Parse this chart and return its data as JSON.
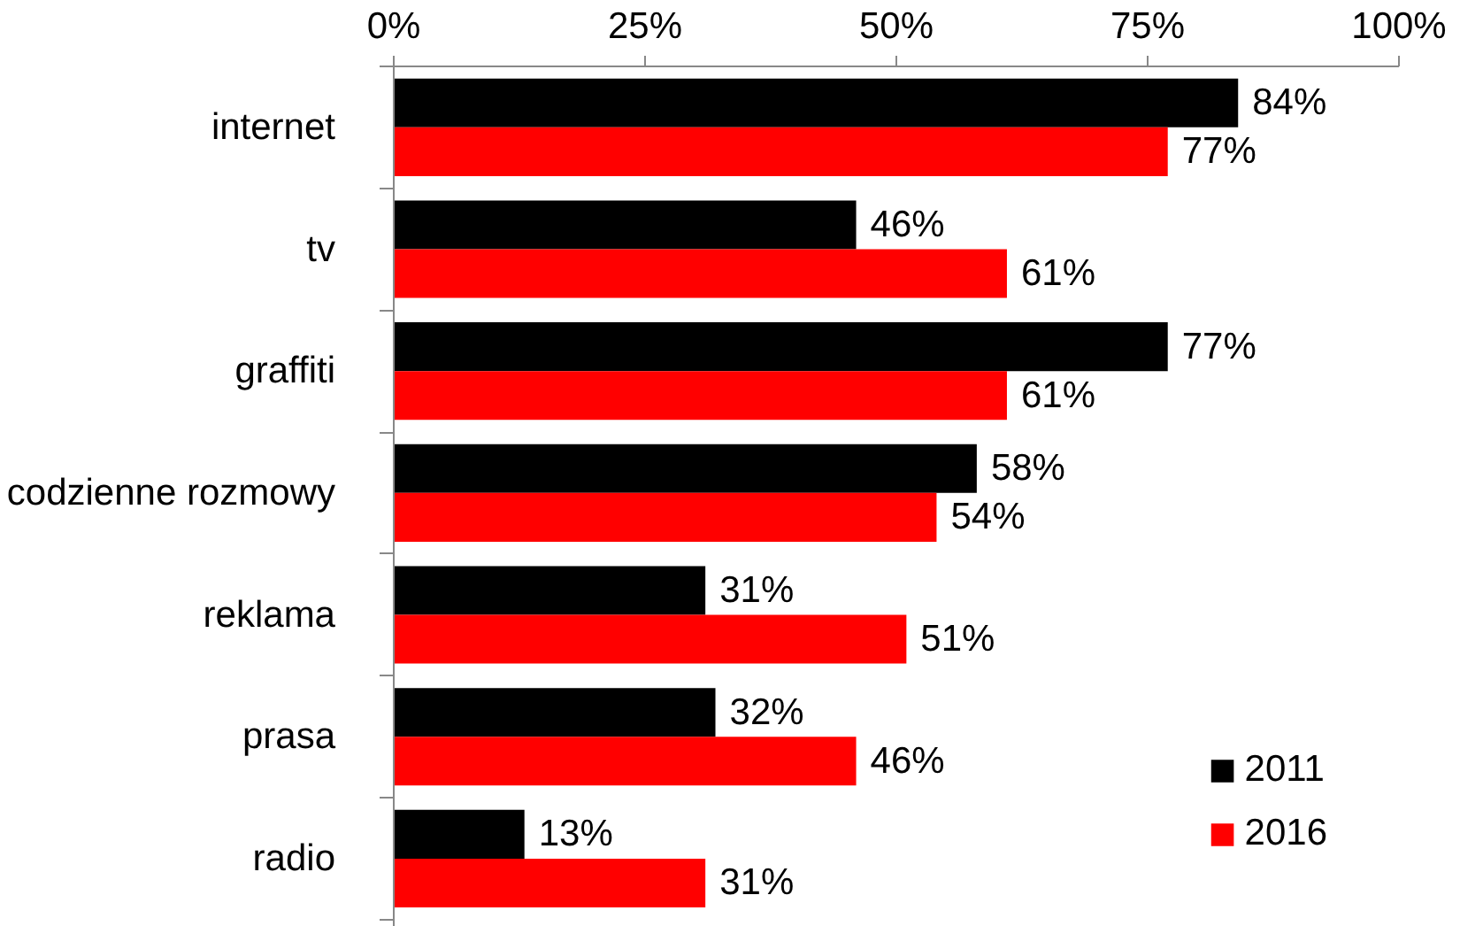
{
  "chart_data": {
    "type": "bar",
    "orientation": "horizontal",
    "categories": [
      "internet",
      "tv",
      "graffiti",
      "codzienne rozmowy",
      "reklama",
      "prasa",
      "radio"
    ],
    "series": [
      {
        "name": "2011",
        "color": "#000000",
        "values": [
          84,
          46,
          77,
          58,
          31,
          32,
          13
        ],
        "value_labels": [
          "84%",
          "46%",
          "77%",
          "58%",
          "31%",
          "32%",
          "13%"
        ]
      },
      {
        "name": "2016",
        "color": "#ff0000",
        "values": [
          77,
          61,
          61,
          54,
          51,
          46,
          31
        ],
        "value_labels": [
          "77%",
          "61%",
          "61%",
          "54%",
          "51%",
          "46%",
          "31%"
        ]
      }
    ],
    "xlim": [
      0,
      100
    ],
    "xticks": [
      {
        "value": 0,
        "label": "0%"
      },
      {
        "value": 25,
        "label": "25%"
      },
      {
        "value": 50,
        "label": "50%"
      },
      {
        "value": 75,
        "label": "75%"
      },
      {
        "value": 100,
        "label": "100%"
      }
    ],
    "grid": false,
    "legend": "bottom right"
  }
}
